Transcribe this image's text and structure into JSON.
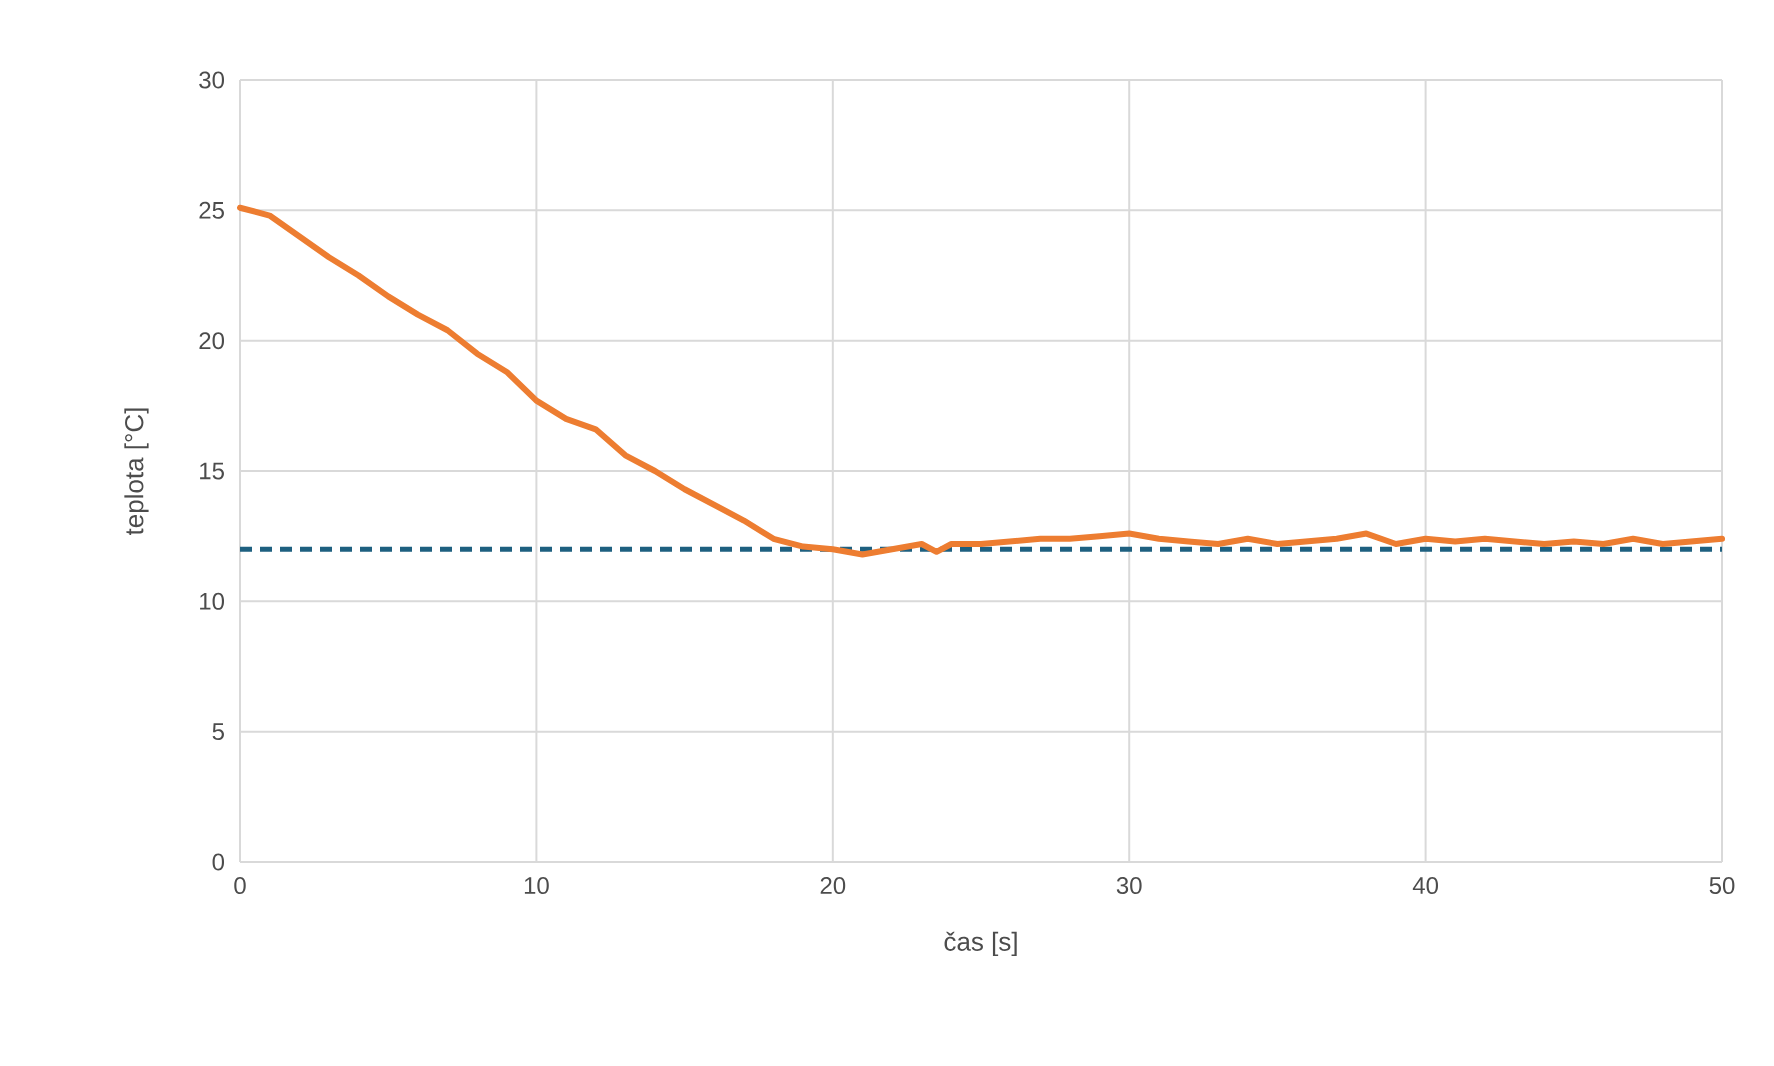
{
  "chart_data": {
    "type": "line",
    "xlabel": "čas [s]",
    "ylabel": "teplota [°C]",
    "xlim": [
      0,
      50
    ],
    "ylim": [
      0,
      30
    ],
    "xticks": [
      0,
      10,
      20,
      30,
      40,
      50
    ],
    "yticks": [
      0,
      5,
      10,
      15,
      20,
      25,
      30
    ],
    "grid": true,
    "marker": "none",
    "line_style": "solid",
    "series": [
      {
        "color": "#ed7d31",
        "x": [
          0,
          1,
          2,
          3,
          4,
          5,
          6,
          7,
          8,
          9,
          10,
          11,
          12,
          13,
          14,
          15,
          16,
          17,
          18,
          19,
          20,
          21,
          22,
          23,
          23.5,
          24,
          25,
          26,
          27,
          28,
          29,
          30,
          31,
          32,
          33,
          34,
          35,
          36,
          37,
          38,
          39,
          40,
          41,
          42,
          43,
          44,
          45,
          46,
          47,
          48,
          49,
          50
        ],
        "values": [
          25.1,
          24.8,
          24.0,
          23.2,
          22.5,
          21.7,
          21.0,
          20.4,
          19.5,
          18.8,
          17.7,
          17.0,
          16.6,
          15.6,
          15.0,
          14.3,
          13.7,
          13.1,
          12.4,
          12.1,
          12.0,
          11.8,
          12.0,
          12.2,
          11.9,
          12.2,
          12.2,
          12.3,
          12.4,
          12.4,
          12.5,
          12.6,
          12.4,
          12.3,
          12.2,
          12.4,
          12.2,
          12.3,
          12.4,
          12.6,
          12.2,
          12.4,
          12.3,
          12.4,
          12.3,
          12.2,
          12.3,
          12.2,
          12.4,
          12.2,
          12.3,
          12.4
        ]
      }
    ],
    "ref_lines": [
      {
        "axis": "y",
        "value": 12,
        "color": "#1e6080",
        "line_style": "dashed"
      }
    ]
  }
}
